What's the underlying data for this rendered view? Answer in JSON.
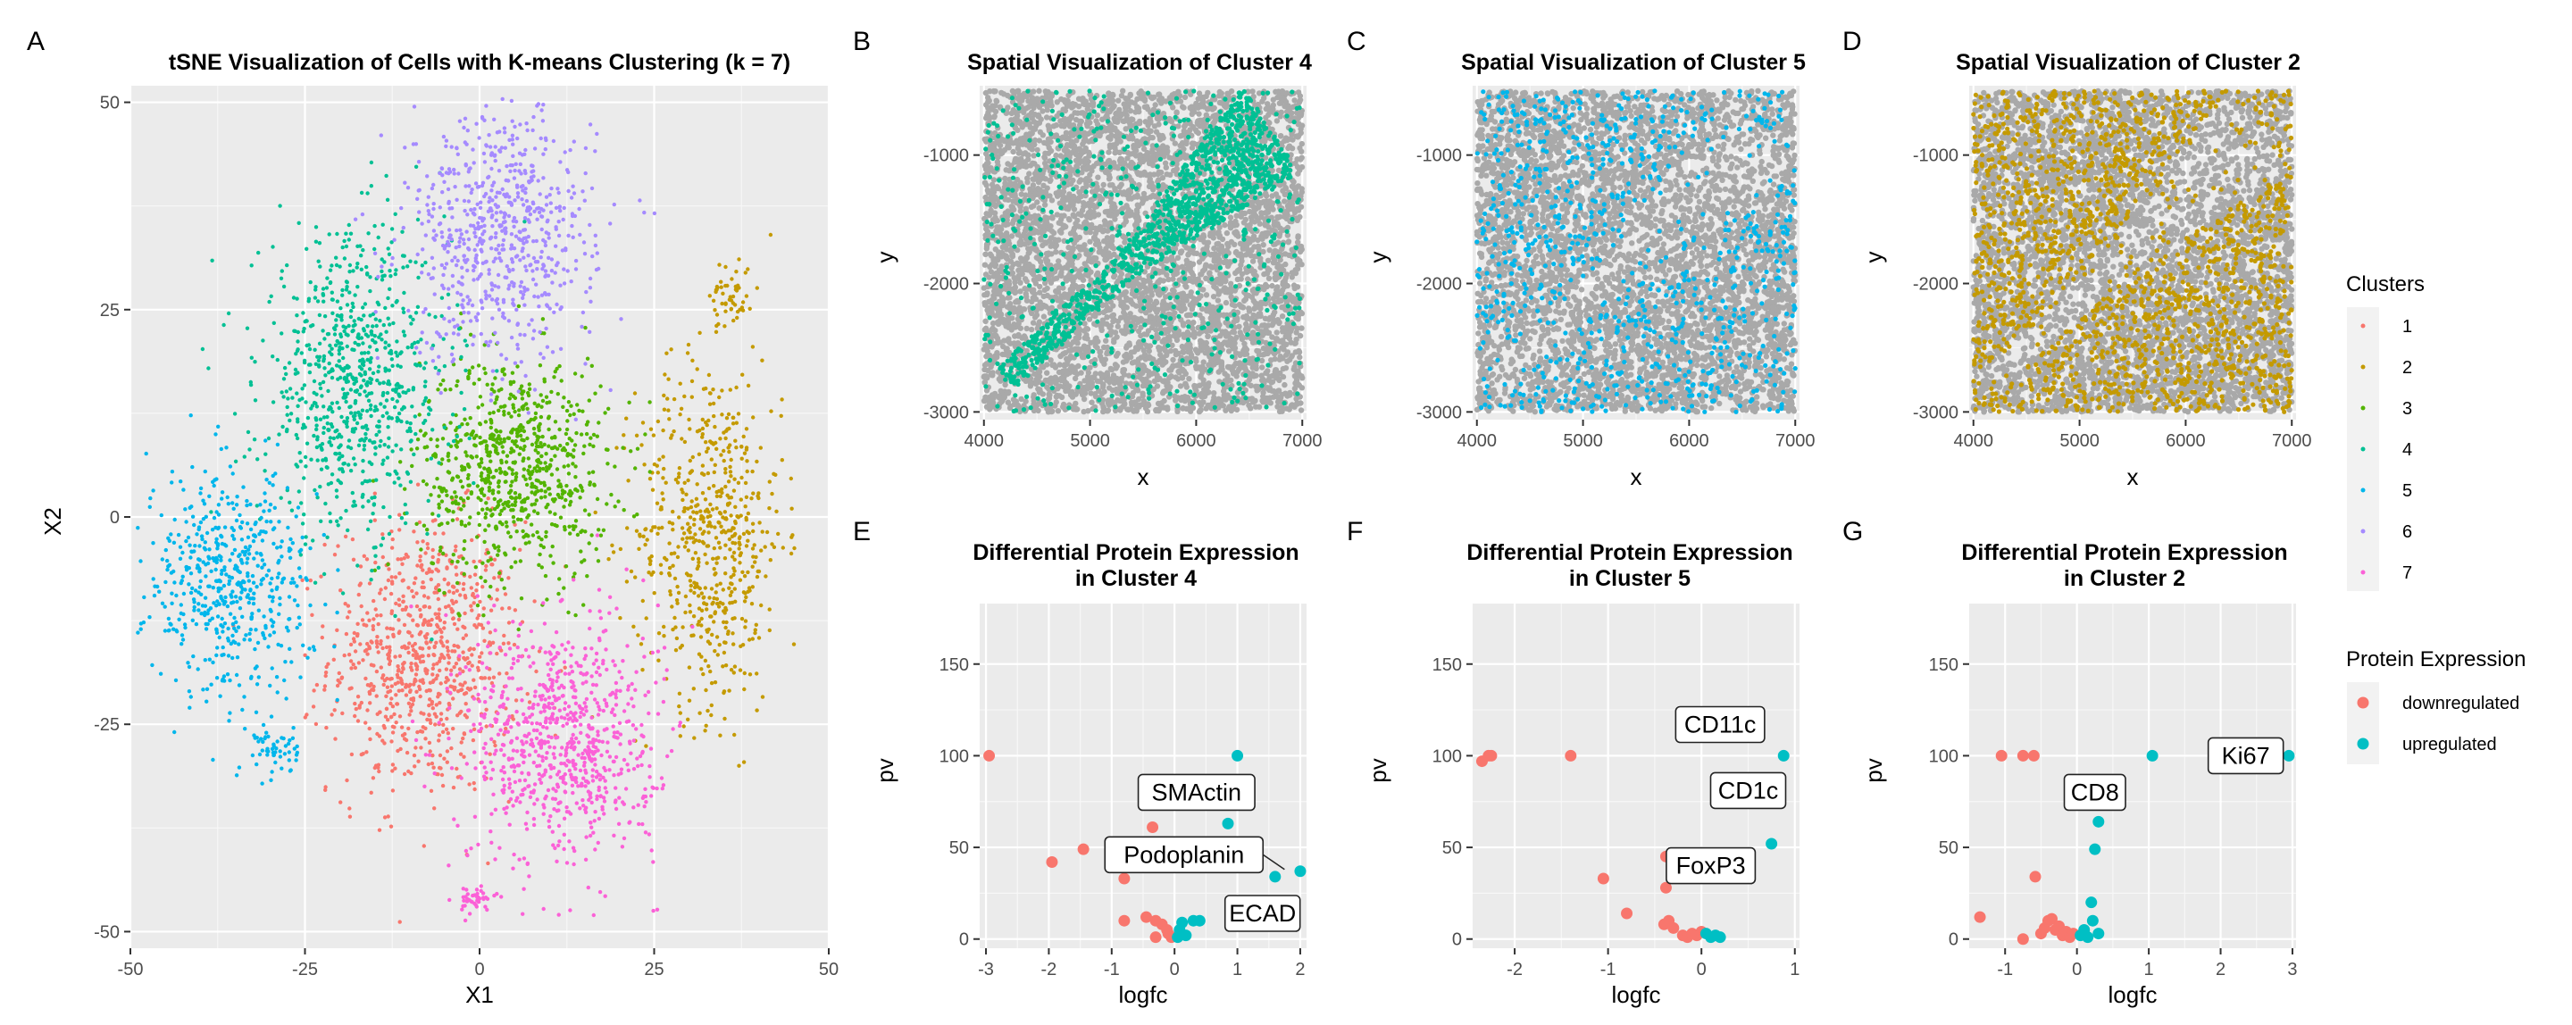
{
  "colors": {
    "cluster": {
      "1": "#F8766D",
      "2": "#C49A00",
      "3": "#53B400",
      "4": "#00C094",
      "5": "#00B6EB",
      "6": "#A58AFF",
      "7": "#FB61D7"
    },
    "down": "#F8766D",
    "up": "#00BFC4",
    "panel_bg": "#EBEBEB",
    "grid": "#FFFFFF",
    "grey_points": "#A9A9A9"
  },
  "legend": {
    "clusters_title": "Clusters",
    "clusters": [
      "1",
      "2",
      "3",
      "4",
      "5",
      "6",
      "7"
    ],
    "expr_title": "Protein Expression",
    "expr_items": [
      {
        "label": "downregulated",
        "key": "down"
      },
      {
        "label": "upregulated",
        "key": "up"
      }
    ]
  },
  "chart_data": [
    {
      "id": "A",
      "letter": "A",
      "type": "scatter",
      "title": "tSNE Visualization of Cells with K-means Clustering (k = 7)",
      "xlabel": "X1",
      "ylabel": "X2",
      "xlim": [
        -50,
        50
      ],
      "ylim": [
        -52,
        52
      ],
      "xticks": [
        -50,
        -25,
        0,
        25,
        50
      ],
      "yticks": [
        -50,
        -25,
        0,
        25,
        50
      ],
      "xtick_labels": [
        "-50",
        "-25",
        "0",
        "25",
        "50"
      ],
      "ytick_labels": [
        "-50",
        "-25",
        "0",
        "25",
        "50"
      ],
      "clusters": [
        {
          "cluster": "1",
          "center": [
            -8,
            -17
          ],
          "spread": [
            9,
            11
          ],
          "n": 800
        },
        {
          "cluster": "2",
          "center": [
            33,
            -2
          ],
          "spread": [
            7,
            14
          ],
          "n": 620
        },
        {
          "cluster": "2",
          "center": [
            36,
            27
          ],
          "spread": [
            2,
            3
          ],
          "n": 50
        },
        {
          "cluster": "3",
          "center": [
            5,
            6
          ],
          "spread": [
            9,
            9
          ],
          "n": 780
        },
        {
          "cluster": "4",
          "center": [
            -18,
            16
          ],
          "spread": [
            9,
            12
          ],
          "n": 800
        },
        {
          "cluster": "5",
          "center": [
            -36,
            -8
          ],
          "spread": [
            8,
            9
          ],
          "n": 560
        },
        {
          "cluster": "5",
          "center": [
            -29,
            -28
          ],
          "spread": [
            2,
            2
          ],
          "n": 50
        },
        {
          "cluster": "6",
          "center": [
            3,
            34
          ],
          "spread": [
            9,
            10
          ],
          "n": 700
        },
        {
          "cluster": "7",
          "center": [
            12,
            -27
          ],
          "spread": [
            9,
            10
          ],
          "n": 800
        },
        {
          "cluster": "7",
          "center": [
            -1,
            -46
          ],
          "spread": [
            2,
            1
          ],
          "n": 40
        }
      ]
    },
    {
      "id": "B",
      "letter": "B",
      "type": "scatter",
      "title": "Spatial Visualization of Cluster 4",
      "highlight_cluster": "4",
      "highlight_mode": "tissue",
      "xlabel": "x",
      "ylabel": "y",
      "xlim": [
        3960,
        7040
      ],
      "ylim": [
        -3060,
        -460
      ],
      "xticks": [
        4000,
        5000,
        6000,
        7000
      ],
      "yticks": [
        -3000,
        -2000,
        -1000
      ],
      "xtick_labels": [
        "4000",
        "5000",
        "6000",
        "7000"
      ],
      "ytick_labels": [
        "-3000",
        "-2000",
        "-1000"
      ]
    },
    {
      "id": "C",
      "letter": "C",
      "type": "scatter",
      "title": "Spatial Visualization of Cluster 5",
      "highlight_cluster": "5",
      "highlight_mode": "sparse",
      "xlabel": "x",
      "ylabel": "y",
      "xlim": [
        3960,
        7040
      ],
      "ylim": [
        -3060,
        -460
      ],
      "xticks": [
        4000,
        5000,
        6000,
        7000
      ],
      "yticks": [
        -3000,
        -2000,
        -1000
      ],
      "xtick_labels": [
        "4000",
        "5000",
        "6000",
        "7000"
      ],
      "ytick_labels": [
        "-3000",
        "-2000",
        "-1000"
      ]
    },
    {
      "id": "D",
      "letter": "D",
      "type": "scatter",
      "title": "Spatial Visualization of Cluster 2",
      "highlight_cluster": "2",
      "highlight_mode": "dense",
      "xlabel": "x",
      "ylabel": "y",
      "xlim": [
        3960,
        7040
      ],
      "ylim": [
        -3060,
        -460
      ],
      "xticks": [
        4000,
        5000,
        6000,
        7000
      ],
      "yticks": [
        -3000,
        -2000,
        -1000
      ],
      "xtick_labels": [
        "4000",
        "5000",
        "6000",
        "7000"
      ],
      "ytick_labels": [
        "-3000",
        "-2000",
        "-1000"
      ]
    },
    {
      "id": "E",
      "letter": "E",
      "type": "scatter",
      "title": "Differential Protein Expression",
      "title2": "in Cluster 4",
      "xlabel": "logfc",
      "ylabel": "pv",
      "xlim": [
        -3.1,
        2.1
      ],
      "ylim": [
        -5,
        183
      ],
      "xticks": [
        -3,
        -2,
        -1,
        0,
        1,
        2
      ],
      "yticks": [
        0,
        50,
        100,
        150
      ],
      "xtick_labels": [
        "-3",
        "-2",
        "-1",
        "0",
        "1",
        "2"
      ],
      "ytick_labels": [
        "0",
        "50",
        "100",
        "150"
      ],
      "points": [
        {
          "x": -2.95,
          "y": 100,
          "g": "down"
        },
        {
          "x": -1.95,
          "y": 42,
          "g": "down"
        },
        {
          "x": -1.45,
          "y": 49,
          "g": "down"
        },
        {
          "x": -0.8,
          "y": 33,
          "g": "down"
        },
        {
          "x": -0.8,
          "y": 10,
          "g": "down"
        },
        {
          "x": -0.45,
          "y": 12,
          "g": "down"
        },
        {
          "x": -0.35,
          "y": 61,
          "g": "down"
        },
        {
          "x": -0.3,
          "y": 10,
          "g": "down"
        },
        {
          "x": -0.2,
          "y": 8,
          "g": "down"
        },
        {
          "x": -0.12,
          "y": 5,
          "g": "down"
        },
        {
          "x": -0.1,
          "y": 3,
          "g": "down"
        },
        {
          "x": -0.05,
          "y": 1,
          "g": "down"
        },
        {
          "x": -0.3,
          "y": 1,
          "g": "down"
        },
        {
          "x": 0.05,
          "y": 1,
          "g": "up"
        },
        {
          "x": 0.08,
          "y": 5,
          "g": "up"
        },
        {
          "x": 0.12,
          "y": 9,
          "g": "up"
        },
        {
          "x": 0.18,
          "y": 2,
          "g": "up"
        },
        {
          "x": 0.3,
          "y": 10,
          "g": "up"
        },
        {
          "x": 0.35,
          "y": 40,
          "g": "up"
        },
        {
          "x": 0.4,
          "y": 10,
          "g": "up"
        },
        {
          "x": 0.85,
          "y": 63,
          "g": "up"
        },
        {
          "x": 1.0,
          "y": 100,
          "g": "up"
        },
        {
          "x": 1.6,
          "y": 34,
          "g": "up"
        },
        {
          "x": 2.0,
          "y": 37,
          "g": "up"
        }
      ],
      "labels": [
        {
          "text": "SMActin",
          "x": 0.35,
          "y": 80,
          "tx": 0.35,
          "ty": 80
        },
        {
          "text": "Podoplanin",
          "x": 0.15,
          "y": 46,
          "tx": 1.75,
          "ty": 38
        },
        {
          "text": "ECAD",
          "x": 1.4,
          "y": 14,
          "tx": 1.4,
          "ty": 14
        }
      ]
    },
    {
      "id": "F",
      "letter": "F",
      "type": "scatter",
      "title": "Differential Protein Expression",
      "title2": "in Cluster 5",
      "xlabel": "logfc",
      "ylabel": "pv",
      "xlim": [
        -2.45,
        1.05
      ],
      "ylim": [
        -5,
        183
      ],
      "xticks": [
        -2,
        -1,
        0,
        1
      ],
      "yticks": [
        0,
        50,
        100,
        150
      ],
      "xtick_labels": [
        "-2",
        "-1",
        "0",
        "1"
      ],
      "ytick_labels": [
        "0",
        "50",
        "100",
        "150"
      ],
      "points": [
        {
          "x": -2.35,
          "y": 97,
          "g": "down"
        },
        {
          "x": -2.28,
          "y": 100,
          "g": "down"
        },
        {
          "x": -2.25,
          "y": 100,
          "g": "down"
        },
        {
          "x": -1.4,
          "y": 100,
          "g": "down"
        },
        {
          "x": -1.05,
          "y": 33,
          "g": "down"
        },
        {
          "x": -0.8,
          "y": 14,
          "g": "down"
        },
        {
          "x": -0.38,
          "y": 45,
          "g": "down"
        },
        {
          "x": -0.38,
          "y": 28,
          "g": "down"
        },
        {
          "x": -0.4,
          "y": 8,
          "g": "down"
        },
        {
          "x": -0.35,
          "y": 10,
          "g": "down"
        },
        {
          "x": -0.3,
          "y": 6,
          "g": "down"
        },
        {
          "x": -0.2,
          "y": 2,
          "g": "down"
        },
        {
          "x": -0.15,
          "y": 1,
          "g": "down"
        },
        {
          "x": -0.1,
          "y": 3,
          "g": "down"
        },
        {
          "x": -0.05,
          "y": 2,
          "g": "down"
        },
        {
          "x": 0.0,
          "y": 4,
          "g": "down"
        },
        {
          "x": 0.05,
          "y": 3,
          "g": "up"
        },
        {
          "x": 0.1,
          "y": 1,
          "g": "up"
        },
        {
          "x": 0.15,
          "y": 2,
          "g": "up"
        },
        {
          "x": 0.2,
          "y": 1,
          "g": "up"
        },
        {
          "x": 0.75,
          "y": 52,
          "g": "up"
        },
        {
          "x": 0.88,
          "y": 100,
          "g": "up"
        }
      ],
      "labels": [
        {
          "text": "CD11c",
          "x": 0.2,
          "y": 117,
          "tx": 0.2,
          "ty": 117
        },
        {
          "text": "CD1c",
          "x": 0.5,
          "y": 81,
          "tx": 0.5,
          "ty": 81
        },
        {
          "text": "FoxP3",
          "x": 0.1,
          "y": 40,
          "tx": 0.1,
          "ty": 40
        }
      ]
    },
    {
      "id": "G",
      "letter": "G",
      "type": "scatter",
      "title": "Differential Protein Expression",
      "title2": "in Cluster 2",
      "xlabel": "logfc",
      "ylabel": "pv",
      "xlim": [
        -1.5,
        3.05
      ],
      "ylim": [
        -5,
        183
      ],
      "xticks": [
        -1,
        0,
        1,
        2,
        3
      ],
      "yticks": [
        0,
        50,
        100,
        150
      ],
      "xtick_labels": [
        "-1",
        "0",
        "1",
        "2",
        "3"
      ],
      "ytick_labels": [
        "0",
        "50",
        "100",
        "150"
      ],
      "points": [
        {
          "x": -1.35,
          "y": 12,
          "g": "down"
        },
        {
          "x": -1.05,
          "y": 100,
          "g": "down"
        },
        {
          "x": -0.75,
          "y": 100,
          "g": "down"
        },
        {
          "x": -0.6,
          "y": 100,
          "g": "down"
        },
        {
          "x": -0.58,
          "y": 34,
          "g": "down"
        },
        {
          "x": -0.5,
          "y": 3,
          "g": "down"
        },
        {
          "x": -0.45,
          "y": 6,
          "g": "down"
        },
        {
          "x": -0.4,
          "y": 10,
          "g": "down"
        },
        {
          "x": -0.35,
          "y": 11,
          "g": "down"
        },
        {
          "x": -0.3,
          "y": 5,
          "g": "down"
        },
        {
          "x": -0.25,
          "y": 7,
          "g": "down"
        },
        {
          "x": -0.2,
          "y": 2,
          "g": "down"
        },
        {
          "x": -0.15,
          "y": 4,
          "g": "down"
        },
        {
          "x": -0.1,
          "y": 1,
          "g": "down"
        },
        {
          "x": -0.05,
          "y": 3,
          "g": "down"
        },
        {
          "x": -0.75,
          "y": 0,
          "g": "down"
        },
        {
          "x": 0.05,
          "y": 2,
          "g": "up"
        },
        {
          "x": 0.1,
          "y": 5,
          "g": "up"
        },
        {
          "x": 0.15,
          "y": 1,
          "g": "up"
        },
        {
          "x": 0.2,
          "y": 20,
          "g": "up"
        },
        {
          "x": 0.22,
          "y": 10,
          "g": "up"
        },
        {
          "x": 0.25,
          "y": 49,
          "g": "up"
        },
        {
          "x": 0.3,
          "y": 64,
          "g": "up"
        },
        {
          "x": 0.3,
          "y": 3,
          "g": "up"
        },
        {
          "x": 1.05,
          "y": 100,
          "g": "up"
        },
        {
          "x": 2.95,
          "y": 100,
          "g": "up"
        }
      ],
      "labels": [
        {
          "text": "CD8",
          "x": 0.25,
          "y": 80,
          "tx": 0.25,
          "ty": 80
        },
        {
          "text": "Ki67",
          "x": 2.35,
          "y": 100,
          "tx": 2.35,
          "ty": 100
        }
      ]
    }
  ]
}
